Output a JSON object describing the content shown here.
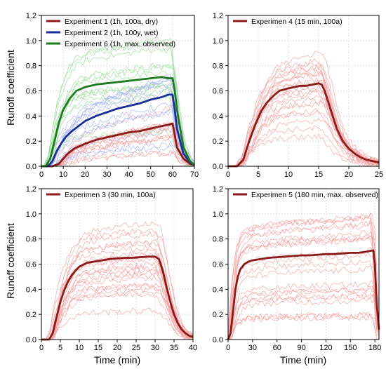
{
  "figure": {
    "ylabel": "Runoff coefficient",
    "xlabel": "Time (min)"
  },
  "chart_data": [
    {
      "type": "line",
      "id": "top-left",
      "xlim": [
        0,
        70
      ],
      "ylim": [
        0,
        1.2
      ],
      "xticks": [
        0,
        10,
        20,
        30,
        40,
        50,
        60,
        70
      ],
      "yticks": [
        0,
        0.2,
        0.4,
        0.6,
        0.8,
        1.0,
        1.2
      ],
      "show_ylabel": true,
      "show_xlabel": false,
      "grid": true,
      "legend_position": "top-left",
      "series": [
        {
          "name": "Experiment 1 (1h, 100a, dry)",
          "color": "#8b1a1a",
          "x": [
            0,
            5,
            8,
            10,
            12,
            15,
            20,
            25,
            30,
            35,
            40,
            45,
            50,
            55,
            58,
            60,
            61,
            62,
            65,
            68,
            70
          ],
          "y": [
            0,
            0,
            0.02,
            0.06,
            0.1,
            0.14,
            0.18,
            0.21,
            0.23,
            0.25,
            0.27,
            0.28,
            0.3,
            0.32,
            0.33,
            0.34,
            0.25,
            0.15,
            0.06,
            0.02,
            0.01
          ]
        },
        {
          "name": "Experiment 2 (1h, 100y, wet)",
          "color": "#1a2e99",
          "x": [
            0,
            3,
            5,
            7,
            9,
            11,
            14,
            17,
            20,
            25,
            30,
            35,
            40,
            45,
            50,
            55,
            58,
            60,
            61,
            62,
            65,
            68,
            70
          ],
          "y": [
            0,
            0,
            0.04,
            0.12,
            0.18,
            0.23,
            0.28,
            0.32,
            0.36,
            0.4,
            0.43,
            0.46,
            0.48,
            0.5,
            0.53,
            0.55,
            0.57,
            0.57,
            0.45,
            0.3,
            0.1,
            0.03,
            0.01
          ]
        },
        {
          "name": "Experiment 6 (1h, max. observed)",
          "color": "#1e7a1e",
          "x": [
            0,
            2,
            4,
            6,
            8,
            10,
            13,
            16,
            20,
            25,
            30,
            35,
            40,
            45,
            50,
            55,
            58,
            60,
            61,
            62,
            65,
            68,
            70
          ],
          "y": [
            0,
            0,
            0.06,
            0.2,
            0.35,
            0.45,
            0.54,
            0.6,
            0.63,
            0.65,
            0.66,
            0.67,
            0.68,
            0.69,
            0.7,
            0.71,
            0.7,
            0.7,
            0.6,
            0.45,
            0.15,
            0.04,
            0.01
          ]
        }
      ]
    },
    {
      "type": "line",
      "id": "top-right",
      "xlim": [
        0,
        25
      ],
      "ylim": [
        0,
        1.2
      ],
      "xticks": [
        0,
        5,
        10,
        15,
        20,
        25
      ],
      "yticks": [
        0,
        0.2,
        0.4,
        0.6,
        0.8,
        1.0,
        1.2
      ],
      "show_ylabel": false,
      "show_xlabel": false,
      "grid": true,
      "legend_position": "top-left",
      "series": [
        {
          "name": "Experimen 4 (15 min, 100a)",
          "color": "#8b1a1a",
          "x": [
            0,
            1.5,
            2.5,
            3.5,
            4.5,
            5.5,
            6.5,
            7.5,
            8.5,
            10,
            11,
            12,
            13,
            14,
            15,
            15.5,
            16,
            17,
            18,
            19,
            20,
            21,
            22,
            23,
            24,
            25
          ],
          "y": [
            0,
            0,
            0.05,
            0.2,
            0.33,
            0.44,
            0.51,
            0.56,
            0.6,
            0.62,
            0.63,
            0.64,
            0.64,
            0.65,
            0.66,
            0.65,
            0.6,
            0.45,
            0.3,
            0.2,
            0.14,
            0.1,
            0.07,
            0.05,
            0.04,
            0.03
          ]
        }
      ]
    },
    {
      "type": "line",
      "id": "bottom-left",
      "xlim": [
        0,
        40
      ],
      "ylim": [
        0,
        1.2
      ],
      "xticks": [
        0,
        5,
        10,
        15,
        20,
        25,
        30,
        35,
        40
      ],
      "yticks": [
        0,
        0.2,
        0.4,
        0.6,
        0.8,
        1.0,
        1.2
      ],
      "show_ylabel": true,
      "show_xlabel": true,
      "grid": true,
      "legend_position": "top-left",
      "series": [
        {
          "name": "Experimen 3 (30 min, 100a)",
          "color": "#8b1a1a",
          "x": [
            0,
            2,
            3,
            4,
            5,
            6,
            7,
            8,
            9,
            10,
            12,
            14,
            16,
            18,
            20,
            22,
            24,
            26,
            28,
            30,
            31,
            32,
            33,
            34,
            35,
            36,
            37,
            38,
            39,
            40
          ],
          "y": [
            0,
            0,
            0.05,
            0.18,
            0.3,
            0.39,
            0.46,
            0.51,
            0.55,
            0.58,
            0.61,
            0.62,
            0.63,
            0.64,
            0.645,
            0.65,
            0.65,
            0.655,
            0.66,
            0.66,
            0.64,
            0.55,
            0.42,
            0.3,
            0.2,
            0.13,
            0.08,
            0.05,
            0.03,
            0.02
          ]
        }
      ]
    },
    {
      "type": "line",
      "id": "bottom-right",
      "xlim": [
        0,
        185
      ],
      "ylim": [
        0,
        1.2
      ],
      "xticks": [
        0,
        30,
        60,
        90,
        120,
        150,
        180
      ],
      "yticks": [
        0,
        0.2,
        0.4,
        0.6,
        0.8,
        1.0,
        1.2
      ],
      "show_ylabel": false,
      "show_xlabel": true,
      "grid": true,
      "legend_position": "top-left",
      "series": [
        {
          "name": "Experimen 5 (180 min, max. observed)",
          "color": "#8b1a1a",
          "x": [
            0,
            3,
            6,
            9,
            12,
            15,
            20,
            25,
            30,
            40,
            50,
            60,
            70,
            80,
            90,
            100,
            110,
            120,
            130,
            140,
            150,
            160,
            170,
            178,
            180,
            182,
            185
          ],
          "y": [
            0,
            0.05,
            0.22,
            0.4,
            0.5,
            0.56,
            0.6,
            0.62,
            0.63,
            0.64,
            0.65,
            0.655,
            0.66,
            0.665,
            0.67,
            0.67,
            0.675,
            0.68,
            0.68,
            0.685,
            0.69,
            0.69,
            0.7,
            0.71,
            0.6,
            0.3,
            0.08
          ]
        }
      ]
    }
  ]
}
